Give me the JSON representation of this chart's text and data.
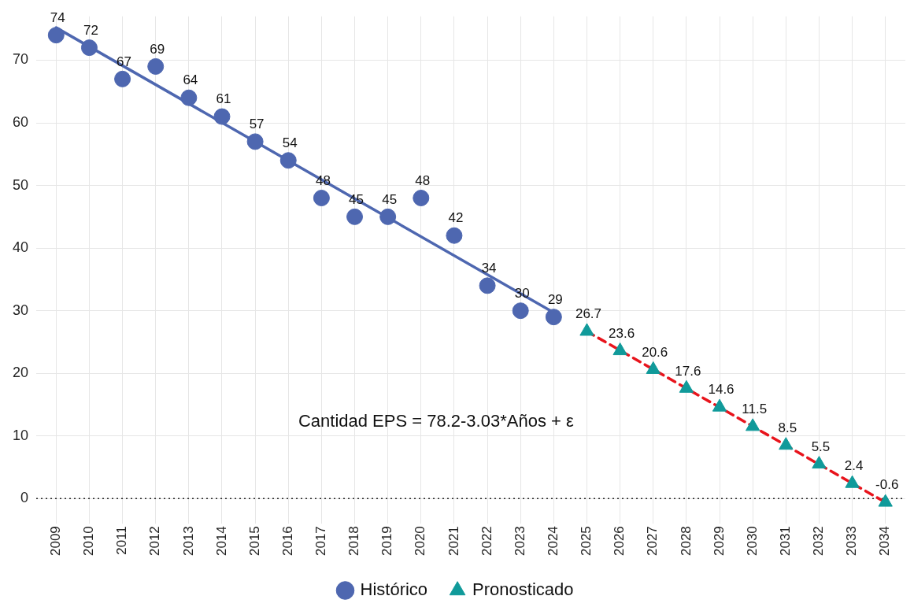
{
  "chart_data": {
    "type": "scatter",
    "series": [
      {
        "name": "Histórico",
        "type": "scatter",
        "marker": "circle",
        "color": "#4e67b0",
        "x": [
          2009,
          2010,
          2011,
          2012,
          2013,
          2014,
          2015,
          2016,
          2017,
          2018,
          2019,
          2020,
          2021,
          2022,
          2023,
          2024
        ],
        "values": [
          74,
          72,
          67,
          69,
          64,
          61,
          57,
          54,
          48,
          45,
          45,
          48,
          42,
          34,
          30,
          29
        ],
        "value_labels": [
          "74",
          "72",
          "67",
          "69",
          "64",
          "61",
          "57",
          "54",
          "48",
          "45",
          "45",
          "48",
          "42",
          "34",
          "30",
          "29"
        ]
      },
      {
        "name": "Pronosticado",
        "type": "scatter",
        "marker": "triangle",
        "color": "#109a9a",
        "x": [
          2025,
          2026,
          2027,
          2028,
          2029,
          2030,
          2031,
          2032,
          2033,
          2034
        ],
        "values": [
          26.7,
          23.6,
          20.6,
          17.6,
          14.6,
          11.5,
          8.5,
          5.5,
          2.4,
          -0.6
        ],
        "value_labels": [
          "26.7",
          "23.6",
          "20.6",
          "17.6",
          "14.6",
          "11.5",
          "8.5",
          "5.5",
          "2.4",
          "-0.6"
        ]
      },
      {
        "type": "line",
        "marker": "none",
        "line_style": "solid",
        "color": "#4e67b0",
        "x": [
          2009,
          2024
        ],
        "values": [
          75.2,
          29.7
        ]
      },
      {
        "type": "line",
        "marker": "none",
        "line_style": "dashed",
        "color": "#e8141c",
        "x": [
          2025,
          2034
        ],
        "values": [
          26.7,
          -0.6
        ]
      }
    ],
    "xlim": [
      2008.4,
      2034.6
    ],
    "xticks": [
      2009,
      2010,
      2011,
      2012,
      2013,
      2014,
      2015,
      2016,
      2017,
      2018,
      2019,
      2020,
      2021,
      2022,
      2023,
      2024,
      2025,
      2026,
      2027,
      2028,
      2029,
      2030,
      2031,
      2032,
      2033,
      2034
    ],
    "ylim": [
      -3,
      77
    ],
    "yticks": [
      0,
      10,
      20,
      30,
      40,
      50,
      60,
      70
    ],
    "grid": true,
    "legend": "bottom",
    "ref_lines": [
      {
        "axis": "y",
        "value": 0,
        "color": "#222222",
        "line_style": "dotted"
      }
    ],
    "annotations": [
      "Cantidad EPS = 78.2-3.03*Años + ε"
    ]
  }
}
